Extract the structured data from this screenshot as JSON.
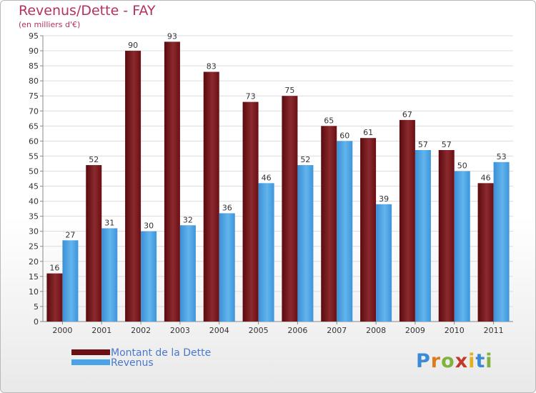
{
  "header": {
    "title": "Revenus/Dette - FAY",
    "subtitle": "(en milliers d'€)"
  },
  "legend": {
    "items": [
      {
        "label": "Montant de la Dette",
        "color": "#6b0f14"
      },
      {
        "label": "Revenus",
        "color": "#4aa3e6"
      }
    ]
  },
  "logo": {
    "text": "Proxiti",
    "colors": [
      "#3b8ad6",
      "#e07a1f",
      "#7fb33d",
      "#c0392b",
      "#e0b21f",
      "#3b8ad6",
      "#7fb33d"
    ]
  },
  "chart_data": {
    "type": "bar",
    "categories": [
      "2000",
      "2001",
      "2002",
      "2003",
      "2004",
      "2005",
      "2006",
      "2007",
      "2008",
      "2009",
      "2010",
      "2011"
    ],
    "series": [
      {
        "name": "Montant de la Dette",
        "color": "#6b0f14",
        "values": [
          16,
          52,
          90,
          93,
          83,
          73,
          75,
          65,
          61,
          67,
          57,
          46
        ]
      },
      {
        "name": "Revenus",
        "color": "#4aa3e6",
        "values": [
          27,
          31,
          30,
          32,
          36,
          46,
          52,
          60,
          39,
          57,
          50,
          53
        ]
      }
    ],
    "ylim": [
      0,
      95
    ],
    "yticks": [
      0,
      5,
      10,
      15,
      20,
      25,
      30,
      35,
      40,
      45,
      50,
      55,
      60,
      65,
      70,
      75,
      80,
      85,
      90,
      95
    ],
    "grid": true
  }
}
